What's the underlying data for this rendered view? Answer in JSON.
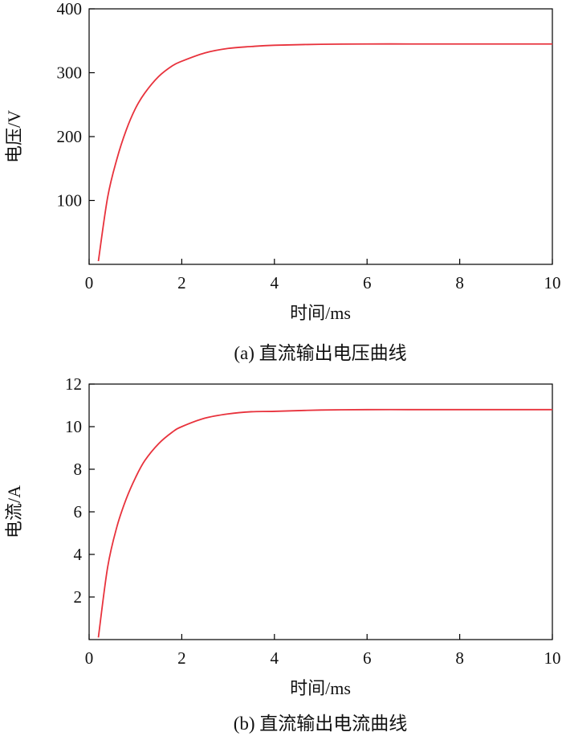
{
  "chart_data": [
    {
      "type": "line",
      "caption": "(a) 直流输出电压曲线",
      "xlabel": "时间/ms",
      "ylabel": "电压/V",
      "xlim": [
        0,
        10
      ],
      "ylim": [
        0,
        400
      ],
      "xticks": [
        0,
        2,
        4,
        6,
        8,
        10
      ],
      "yticks": [
        100,
        200,
        300,
        400
      ],
      "grid": false,
      "series": [
        {
          "color": "#e8323c",
          "x": [
            0.2,
            0.4,
            0.6,
            0.8,
            1.0,
            1.2,
            1.5,
            1.8,
            2.0,
            2.5,
            3.0,
            3.5,
            4.0,
            5.0,
            6.0,
            7.0,
            8.0,
            9.0,
            10.0
          ],
          "y": [
            5,
            105,
            165,
            210,
            244,
            268,
            294,
            311,
            318,
            331,
            338,
            341,
            343,
            344.5,
            345,
            345,
            345,
            345,
            345
          ]
        }
      ]
    },
    {
      "type": "line",
      "caption": "(b) 直流输出电流曲线",
      "xlabel": "时间/ms",
      "ylabel": "电流/A",
      "xlim": [
        0,
        10
      ],
      "ylim": [
        0,
        12
      ],
      "xticks": [
        0,
        2,
        4,
        6,
        8,
        10
      ],
      "yticks": [
        2,
        4,
        6,
        8,
        10,
        12
      ],
      "grid": false,
      "series": [
        {
          "color": "#e8323c",
          "x": [
            0.2,
            0.4,
            0.6,
            0.8,
            1.0,
            1.2,
            1.5,
            1.8,
            2.0,
            2.5,
            3.0,
            3.5,
            4.0,
            5.0,
            6.0,
            7.0,
            8.0,
            9.0,
            10.0
          ],
          "y": [
            0.1,
            3.4,
            5.3,
            6.6,
            7.6,
            8.4,
            9.2,
            9.75,
            10.0,
            10.4,
            10.6,
            10.7,
            10.72,
            10.78,
            10.8,
            10.8,
            10.8,
            10.8,
            10.8
          ]
        }
      ]
    }
  ]
}
